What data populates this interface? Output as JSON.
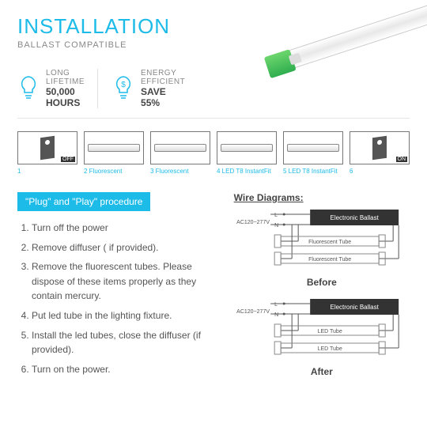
{
  "header": {
    "title": "INSTALLATION",
    "subtitle": "BALLAST COMPATIBLE",
    "accent_color": "#1dbbe8"
  },
  "features": [
    {
      "icon": "bulb-icon",
      "line1": "LONG",
      "line2": "LIFETIME",
      "val1": "50,000",
      "val2": "HOURS"
    },
    {
      "icon": "dollar-icon",
      "line1": "ENERGY",
      "line2": "EFFICIENT",
      "val1": "SAVE",
      "val2": "55%"
    }
  ],
  "steps_row": [
    {
      "num": "1",
      "label": "",
      "kind": "switch",
      "tag": "OFF"
    },
    {
      "num": "2",
      "label": "Fluorescent",
      "kind": "tube"
    },
    {
      "num": "3",
      "label": "Fluorescent",
      "kind": "tube"
    },
    {
      "num": "4",
      "label": "LED T8 InstantFit",
      "kind": "tube"
    },
    {
      "num": "5",
      "label": "LED T8 InstantFit",
      "kind": "tube"
    },
    {
      "num": "6",
      "label": "",
      "kind": "switch",
      "tag": "ON"
    }
  ],
  "procedure": {
    "badge": "\"Plug\" and \"Play\" procedure",
    "items": [
      "Turn off the power",
      "Remove diffuser  ( if provided).",
      "Remove the fluorescent tubes. Please  dispose of these items properly as they contain mercury.",
      "Put led tube in the lighting fixture.",
      "Install the led tubes, close the diffuser (if provided).",
      "Turn on the power."
    ]
  },
  "wiring": {
    "title": "Wire Diagrams:",
    "voltage_label": "AC120~277V",
    "l_label": "L",
    "n_label": "N",
    "ballast_label": "Electronic Ballast",
    "diagrams": [
      {
        "tube_label": "Fluorescent Tube",
        "caption": "Before"
      },
      {
        "tube_label": "LED Tube",
        "caption": "After"
      }
    ],
    "colors": {
      "line": "#555555",
      "box_fill": "#333333",
      "box_text": "#ffffff",
      "tube_stroke": "#888888"
    }
  }
}
